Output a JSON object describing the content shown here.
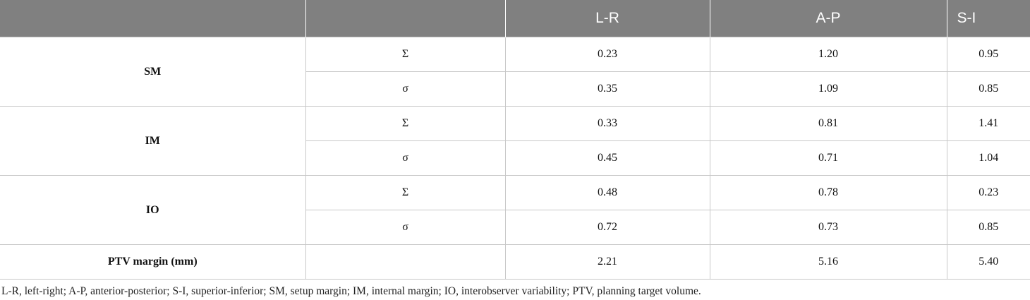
{
  "table": {
    "header": [
      "L-R",
      "A-P",
      "S-I"
    ],
    "groups": [
      {
        "label": "SM",
        "rows": [
          [
            "Σ",
            "0.23",
            "1.20",
            "0.95"
          ],
          [
            "σ",
            "0.35",
            "1.09",
            "0.85"
          ]
        ]
      },
      {
        "label": "IM",
        "rows": [
          [
            "Σ",
            "0.33",
            "0.81",
            "1.41"
          ],
          [
            "σ",
            "0.45",
            "0.71",
            "1.04"
          ]
        ]
      },
      {
        "label": "IO",
        "rows": [
          [
            "Σ",
            "0.48",
            "0.78",
            "0.23"
          ],
          [
            "σ",
            "0.72",
            "0.73",
            "0.85"
          ]
        ]
      }
    ],
    "total": {
      "label": "PTV margin (mm)",
      "values": [
        "2.21",
        "5.16",
        "5.40"
      ]
    }
  },
  "footnote": "L-R, left-right; A-P, anterior-posterior; S-I, superior-inferior; SM, setup margin; IM, internal margin; IO, interobserver variability; PTV, planning target volume."
}
